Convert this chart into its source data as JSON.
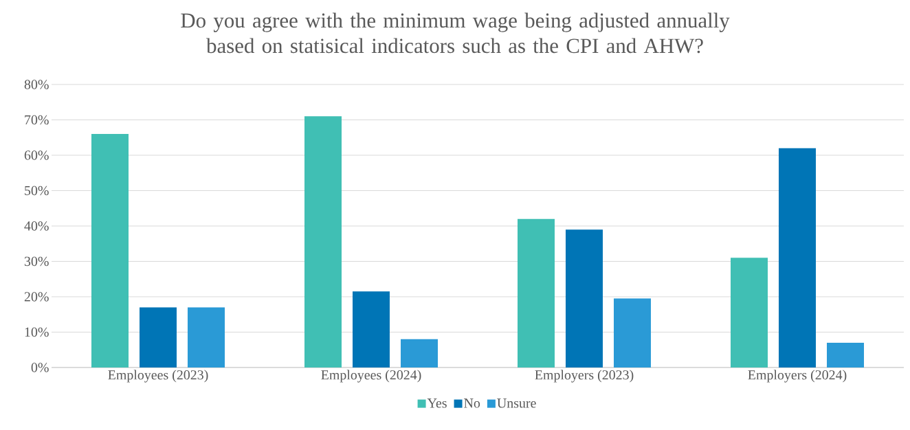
{
  "chart_data": {
    "type": "bar",
    "title": "Do you agree with the minimum wage being adjusted annually based on statisical indicators such as the CPI and AHW?",
    "categories": [
      "Employees (2023)",
      "Employees (2024)",
      "Employers (2023)",
      "Employers (2024)"
    ],
    "series": [
      {
        "name": "Yes",
        "color": "#40bfb4",
        "values": [
          66,
          71,
          42,
          31
        ]
      },
      {
        "name": "No",
        "color": "#0075b6",
        "values": [
          17,
          21.5,
          39,
          62
        ]
      },
      {
        "name": "Unsure",
        "color": "#2a9ad6",
        "values": [
          17,
          8,
          19.5,
          7
        ]
      }
    ],
    "ylim": [
      0,
      80
    ],
    "yticks": [
      {
        "value": 0,
        "label": "0%"
      },
      {
        "value": 10,
        "label": "10%"
      },
      {
        "value": 20,
        "label": "20%"
      },
      {
        "value": 30,
        "label": "30%"
      },
      {
        "value": 40,
        "label": "40%"
      },
      {
        "value": 50,
        "label": "50%"
      },
      {
        "value": 60,
        "label": "60%"
      },
      {
        "value": 70,
        "label": "70%"
      },
      {
        "value": 80,
        "label": "80%"
      }
    ],
    "grid": "y",
    "legend": "bottom"
  }
}
